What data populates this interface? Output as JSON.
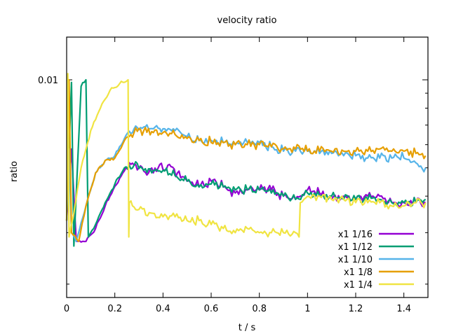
{
  "chart_data": {
    "type": "line",
    "title": "velocity ratio",
    "xlabel": "t / s",
    "ylabel": "ratio",
    "xlim": [
      0,
      1.5
    ],
    "ylog": true,
    "ylim": [
      0.0018,
      0.014
    ],
    "x_ticks": [
      0,
      0.2,
      0.4,
      0.6,
      0.8,
      1,
      1.2,
      1.4
    ],
    "x_tick_labels": [
      "0",
      "0.2",
      "0.4",
      "0.6",
      "0.8",
      "1",
      "1.2",
      "1.4"
    ],
    "y_major_ticks": [
      0.01
    ],
    "y_major_tick_labels": [
      "0.01"
    ],
    "y_minor_ticks": [
      0.002,
      0.003,
      0.004,
      0.005,
      0.006,
      0.007,
      0.008,
      0.009
    ],
    "grid": false,
    "legend_position": "bottom-right",
    "series": [
      {
        "name": "x1 1/16",
        "color": "#9400d3",
        "points": [
          [
            0.0,
            0.0033
          ],
          [
            0.02,
            0.0058
          ],
          [
            0.04,
            0.0028
          ],
          [
            0.08,
            0.0028
          ],
          [
            0.12,
            0.0031
          ],
          [
            0.16,
            0.0037
          ],
          [
            0.18,
            0.004
          ],
          [
            0.22,
            0.0046
          ],
          [
            0.26,
            0.0052
          ],
          [
            0.3,
            0.005
          ],
          [
            0.34,
            0.0048
          ],
          [
            0.38,
            0.005
          ],
          [
            0.42,
            0.0051
          ],
          [
            0.46,
            0.0048
          ],
          [
            0.5,
            0.0045
          ],
          [
            0.55,
            0.0043
          ],
          [
            0.6,
            0.0045
          ],
          [
            0.65,
            0.0043
          ],
          [
            0.7,
            0.0041
          ],
          [
            0.75,
            0.0042
          ],
          [
            0.8,
            0.0042
          ],
          [
            0.85,
            0.0042
          ],
          [
            0.9,
            0.004
          ],
          [
            0.95,
            0.0039
          ],
          [
            1.0,
            0.0042
          ],
          [
            1.05,
            0.0041
          ],
          [
            1.1,
            0.0039
          ],
          [
            1.15,
            0.004
          ],
          [
            1.2,
            0.0039
          ],
          [
            1.25,
            0.004
          ],
          [
            1.3,
            0.004
          ],
          [
            1.35,
            0.0038
          ],
          [
            1.4,
            0.0038
          ],
          [
            1.45,
            0.0038
          ],
          [
            1.49,
            0.0038
          ]
        ]
      },
      {
        "name": "x1 1/12",
        "color": "#009e73",
        "points": [
          [
            0.0,
            0.0033
          ],
          [
            0.02,
            0.0098
          ],
          [
            0.03,
            0.0027
          ],
          [
            0.06,
            0.0095
          ],
          [
            0.08,
            0.01
          ],
          [
            0.09,
            0.0029
          ],
          [
            0.12,
            0.0032
          ],
          [
            0.16,
            0.0038
          ],
          [
            0.2,
            0.0044
          ],
          [
            0.24,
            0.005
          ],
          [
            0.28,
            0.0051
          ],
          [
            0.32,
            0.0049
          ],
          [
            0.36,
            0.0049
          ],
          [
            0.4,
            0.0049
          ],
          [
            0.45,
            0.0047
          ],
          [
            0.5,
            0.0045
          ],
          [
            0.55,
            0.0043
          ],
          [
            0.6,
            0.0044
          ],
          [
            0.65,
            0.0043
          ],
          [
            0.7,
            0.0042
          ],
          [
            0.75,
            0.0042
          ],
          [
            0.8,
            0.0042
          ],
          [
            0.85,
            0.0041
          ],
          [
            0.9,
            0.004
          ],
          [
            0.95,
            0.0039
          ],
          [
            1.0,
            0.0041
          ],
          [
            1.05,
            0.004
          ],
          [
            1.1,
            0.004
          ],
          [
            1.15,
            0.0039
          ],
          [
            1.2,
            0.0039
          ],
          [
            1.25,
            0.0039
          ],
          [
            1.3,
            0.0039
          ],
          [
            1.35,
            0.0038
          ],
          [
            1.4,
            0.0038
          ],
          [
            1.45,
            0.0038
          ],
          [
            1.49,
            0.0039
          ]
        ]
      },
      {
        "name": "x1 1/10",
        "color": "#56b4e9",
        "points": [
          [
            0.0,
            0.0033
          ],
          [
            0.01,
            0.0058
          ],
          [
            0.02,
            0.003
          ],
          [
            0.04,
            0.0028
          ],
          [
            0.08,
            0.0037
          ],
          [
            0.12,
            0.0048
          ],
          [
            0.16,
            0.0053
          ],
          [
            0.2,
            0.0055
          ],
          [
            0.24,
            0.0063
          ],
          [
            0.28,
            0.0068
          ],
          [
            0.32,
            0.0069
          ],
          [
            0.36,
            0.0068
          ],
          [
            0.4,
            0.0068
          ],
          [
            0.45,
            0.0067
          ],
          [
            0.5,
            0.0064
          ],
          [
            0.55,
            0.0062
          ],
          [
            0.6,
            0.0062
          ],
          [
            0.65,
            0.0061
          ],
          [
            0.7,
            0.006
          ],
          [
            0.75,
            0.0061
          ],
          [
            0.8,
            0.0061
          ],
          [
            0.85,
            0.0059
          ],
          [
            0.9,
            0.0057
          ],
          [
            0.95,
            0.0057
          ],
          [
            1.0,
            0.0057
          ],
          [
            1.05,
            0.0056
          ],
          [
            1.1,
            0.0056
          ],
          [
            1.15,
            0.0055
          ],
          [
            1.2,
            0.0055
          ],
          [
            1.25,
            0.0054
          ],
          [
            1.3,
            0.0054
          ],
          [
            1.35,
            0.0054
          ],
          [
            1.4,
            0.0054
          ],
          [
            1.45,
            0.0052
          ],
          [
            1.49,
            0.005
          ]
        ]
      },
      {
        "name": "x1 1/8",
        "color": "#e69f00",
        "points": [
          [
            0.0,
            0.0033
          ],
          [
            0.01,
            0.01
          ],
          [
            0.02,
            0.003
          ],
          [
            0.05,
            0.0028
          ],
          [
            0.08,
            0.0037
          ],
          [
            0.12,
            0.0048
          ],
          [
            0.16,
            0.0053
          ],
          [
            0.2,
            0.0054
          ],
          [
            0.24,
            0.0062
          ],
          [
            0.28,
            0.0066
          ],
          [
            0.32,
            0.0067
          ],
          [
            0.36,
            0.0066
          ],
          [
            0.4,
            0.0066
          ],
          [
            0.45,
            0.0065
          ],
          [
            0.5,
            0.0063
          ],
          [
            0.55,
            0.0062
          ],
          [
            0.6,
            0.0061
          ],
          [
            0.65,
            0.0061
          ],
          [
            0.7,
            0.006
          ],
          [
            0.75,
            0.006
          ],
          [
            0.8,
            0.006
          ],
          [
            0.85,
            0.0059
          ],
          [
            0.9,
            0.0058
          ],
          [
            0.95,
            0.0058
          ],
          [
            1.0,
            0.0057
          ],
          [
            1.05,
            0.0057
          ],
          [
            1.1,
            0.0057
          ],
          [
            1.15,
            0.0057
          ],
          [
            1.2,
            0.0057
          ],
          [
            1.25,
            0.0057
          ],
          [
            1.3,
            0.0058
          ],
          [
            1.35,
            0.0057
          ],
          [
            1.4,
            0.0057
          ],
          [
            1.45,
            0.0056
          ],
          [
            1.49,
            0.0055
          ]
        ]
      },
      {
        "name": "x1 1/4",
        "color": "#f0e442",
        "points": [
          [
            0.0,
            0.0033
          ],
          [
            0.005,
            0.0105
          ],
          [
            0.01,
            0.0029
          ],
          [
            0.03,
            0.0035
          ],
          [
            0.06,
            0.005
          ],
          [
            0.1,
            0.0067
          ],
          [
            0.14,
            0.008
          ],
          [
            0.18,
            0.0092
          ],
          [
            0.22,
            0.0097
          ],
          [
            0.255,
            0.01
          ],
          [
            0.258,
            0.0029
          ],
          [
            0.26,
            0.0038
          ],
          [
            0.3,
            0.0036
          ],
          [
            0.35,
            0.0035
          ],
          [
            0.4,
            0.0034
          ],
          [
            0.45,
            0.0034
          ],
          [
            0.5,
            0.0033
          ],
          [
            0.55,
            0.0033
          ],
          [
            0.6,
            0.0032
          ],
          [
            0.65,
            0.0031
          ],
          [
            0.7,
            0.003
          ],
          [
            0.75,
            0.0031
          ],
          [
            0.8,
            0.003
          ],
          [
            0.85,
            0.003
          ],
          [
            0.9,
            0.003
          ],
          [
            0.95,
            0.003
          ],
          [
            0.965,
            0.0029
          ],
          [
            0.97,
            0.0038
          ],
          [
            1.0,
            0.004
          ],
          [
            1.05,
            0.004
          ],
          [
            1.1,
            0.0039
          ],
          [
            1.15,
            0.0039
          ],
          [
            1.2,
            0.0038
          ],
          [
            1.25,
            0.0038
          ],
          [
            1.3,
            0.0038
          ],
          [
            1.35,
            0.0037
          ],
          [
            1.4,
            0.0037
          ],
          [
            1.45,
            0.0038
          ],
          [
            1.49,
            0.0038
          ]
        ]
      }
    ]
  }
}
